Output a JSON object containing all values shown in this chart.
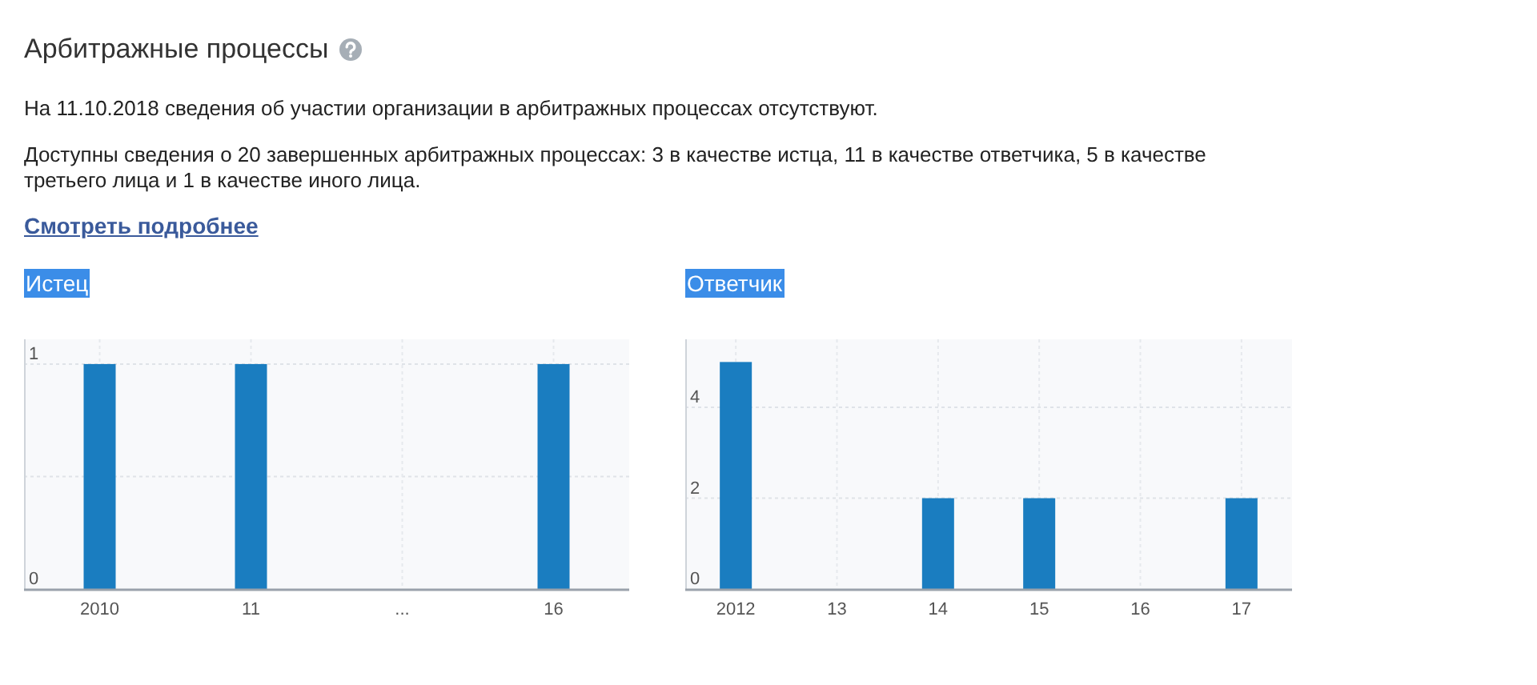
{
  "chart_data": [
    {
      "type": "other",
      "title": "Арбитражные процессы",
      "annotations": [
        "На 11.10.2018 сведения об участии организации в арбитражных процессах отсутствуют.",
        "Доступны сведения о 20 завершенных арбитражных процессах: 3 в качестве истца, 11 в качестве ответчика, 5 в качестве третьего лица и 1 в качестве иного лица.",
        "Смотреть подробнее"
      ]
    },
    {
      "type": "bar",
      "title": "Истец",
      "categories": [
        "2010",
        "11",
        "...",
        "16"
      ],
      "values": [
        1,
        1,
        null,
        1
      ],
      "color": "#1a7dc0",
      "ylim": [
        0,
        1.11
      ],
      "yticks": [
        0,
        {
          "value": 0.5,
          "label": null
        },
        1
      ],
      "grid": true
    },
    {
      "type": "bar",
      "title": "Ответчик",
      "categories": [
        "2012",
        "13",
        "14",
        "15",
        "16",
        "17"
      ],
      "values": [
        5,
        0,
        2,
        2,
        0,
        2
      ],
      "color": "#1a7dc0",
      "ylim": [
        0,
        5.5
      ],
      "yticks": [
        0,
        2,
        4
      ],
      "grid": true
    }
  ]
}
